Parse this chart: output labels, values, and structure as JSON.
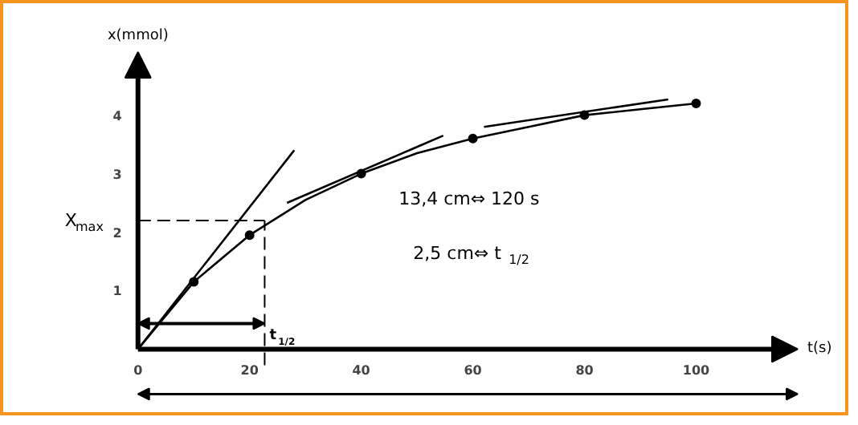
{
  "chart_data": {
    "type": "line",
    "xlabel": "t(s)",
    "ylabel": "x(mmol)",
    "xlim": [
      -24,
      128
    ],
    "ylim": [
      -1.2,
      5.9
    ],
    "xticks": [
      0,
      20,
      40,
      60,
      80,
      100
    ],
    "yticks": [
      1,
      2,
      3,
      4
    ],
    "grid": false,
    "line_style": "solid",
    "series": [
      {
        "color": "#000000",
        "marker": "none",
        "x": [
          0,
          10,
          20,
          30,
          40,
          50,
          60,
          70,
          80,
          90,
          100
        ],
        "values": [
          0,
          1.15,
          1.95,
          2.55,
          3.0,
          3.35,
          3.6,
          3.8,
          4.0,
          4.1,
          4.2
        ]
      },
      {
        "type": "scatter",
        "color": "#000000",
        "marker": "circle",
        "x": [
          10,
          20,
          40,
          60,
          80,
          100
        ],
        "values": [
          1.15,
          1.95,
          3.0,
          3.6,
          4.0,
          4.2
        ]
      },
      {
        "color": "#000000",
        "marker": "none",
        "x": [
          0,
          28
        ],
        "values": [
          0,
          3.4
        ]
      },
      {
        "color": "#000000",
        "marker": "none",
        "x": [
          26.7,
          54.7
        ],
        "values": [
          2.5,
          3.65
        ]
      },
      {
        "color": "#000000",
        "marker": "none",
        "x": [
          62,
          95
        ],
        "values": [
          3.8,
          4.27
        ]
      }
    ],
    "ref_lines": [
      {
        "axis": "y",
        "value": 2.2,
        "label": "X$_{max}$",
        "line_style": "dashed",
        "color": "#000000"
      },
      {
        "axis": "x",
        "value": 22.7,
        "label": "t$_{1/2}$",
        "line_style": "dashed",
        "color": "#000000"
      }
    ],
    "annotations": [
      "13,4 cm⇔ 120 s",
      "2,5 cm⇔ t$_{1/2}$"
    ]
  }
}
